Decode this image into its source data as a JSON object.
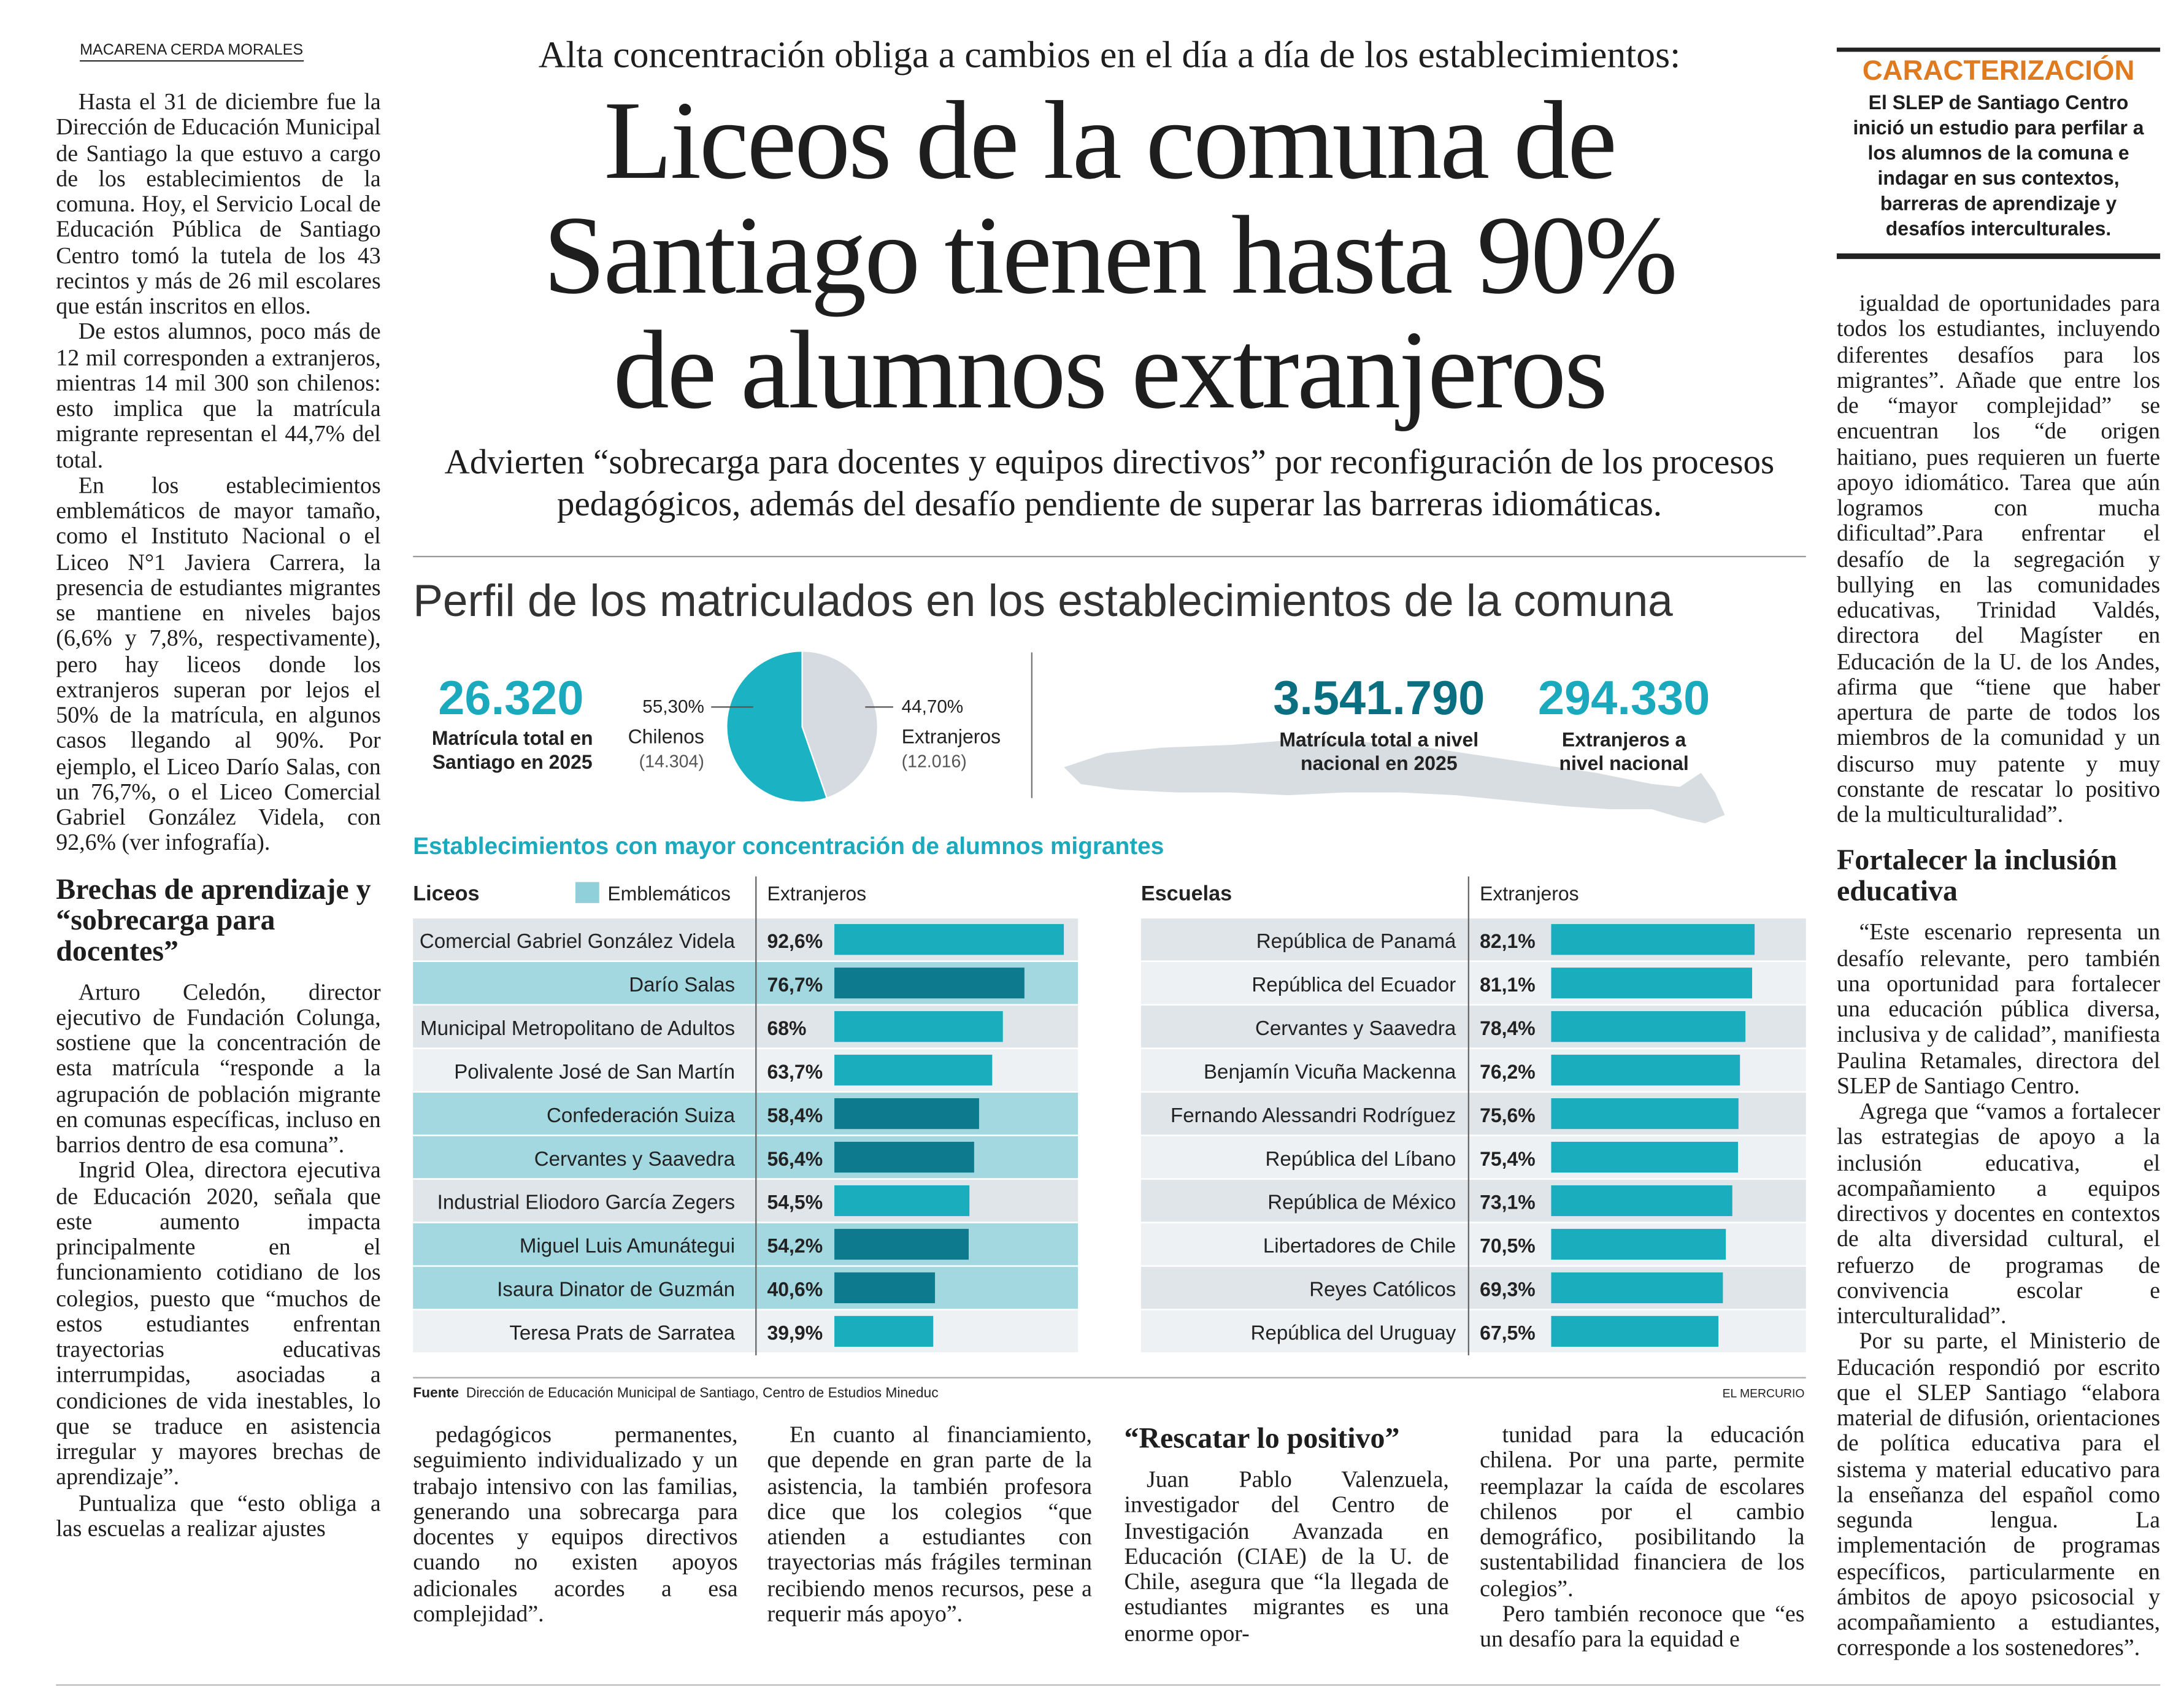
{
  "byline": "MACARENA CERDA MORALES",
  "headline": {
    "kicker": "Alta concentración obliga a cambios en el día a día de los establecimientos:",
    "title": "Liceos de la comuna de Santiago tienen hasta 90% de alumnos extranjeros",
    "deck": "Advierten “sobrecarga para docentes y equipos directivos” por reconfiguración de los procesos pedagógicos, además del desafío pendiente de superar las barreras idiomáticas."
  },
  "column_1": [
    {
      "p": "Hasta el 31 de diciembre fue la Dirección de Educación Municipal de Santiago la que estuvo a cargo de los establecimientos de la comuna. Hoy, el Servicio Local de Educación Pública de Santiago Centro tomó la tutela de los 43 recintos y más de 26 mil escolares que están inscritos en ellos."
    },
    {
      "p": "De estos alumnos, poco más de 12 mil corresponden a extranjeros, mientras 14 mil 300 son chilenos: esto implica que la matrícula migrante representan el 44,7% del total."
    },
    {
      "p": "En los establecimientos emblemáticos de mayor tamaño, como el Instituto Nacional o el Liceo N°1 Javiera Carrera, la presencia de estudiantes migrantes se mantiene en niveles bajos (6,6% y 7,8%, respectivamente), pero hay liceos donde los extranjeros superan por lejos el 50% de la matrícula, en algunos casos llegando al 90%. Por ejemplo, el Liceo Darío Salas, con un 76,7%, o el Liceo Comercial Gabriel González Videla, con 92,6% (ver infografía)."
    },
    {
      "h": "Brechas de aprendizaje y “sobrecarga para docentes”"
    },
    {
      "p": "Arturo Celedón, director ejecutivo de Fundación Colunga, sostiene que la concentración de esta matrícula “responde a la agrupación de población migrante en comunas específicas, incluso en barrios dentro de esa comuna”."
    },
    {
      "p": "Ingrid Olea, directora ejecutiva de Educación 2020, señala que este aumento impacta principalmente en el funcionamiento cotidiano de los colegios, puesto que “muchos de estos estudiantes enfrentan trayectorias educativas interrumpidas, asociadas a condiciones de vida inestables, lo que se traduce en asistencia irregular y mayores brechas de aprendizaje”."
    },
    {
      "p": "Puntualiza que “esto obliga a las escuelas a realizar ajustes"
    }
  ],
  "column_2": [
    {
      "p": "pedagógicos permanentes, seguimiento individualizado y un trabajo intensivo con las familias, generando una sobrecarga para docentes y equipos directivos cuando no existen apoyos adicionales acordes a esa complejidad”."
    }
  ],
  "column_3": [
    {
      "p": "En cuanto al financiamiento, que depende en gran parte de la asistencia, la también profesora dice que los colegios “que atienden a estudiantes con trayectorias más frágiles terminan recibiendo menos recursos, pese a requerir más apoyo”."
    }
  ],
  "column_4": [
    {
      "h": "“Rescatar lo positivo”"
    },
    {
      "p": "Juan Pablo Valenzuela, investigador del Centro de Investigación Avanzada en Educación (CIAE) de la U. de Chile, asegura que “la llegada de estudiantes migrantes es una enorme opor-"
    }
  ],
  "column_5": [
    {
      "p": "tunidad para la educación chilena. Por una parte, permite reemplazar la caída de escolares chilenos por el cambio demográfico, posibilitando la sustentabilidad financiera de los colegios”."
    },
    {
      "p": "Pero también reconoce que “es un desafío para la equidad e"
    }
  ],
  "box": {
    "title": "CARACTERIZACIÓN",
    "text": "El SLEP de Santiago Centro inició un estudio para perfilar a los alumnos de la comuna e indagar en sus contextos, barreras de aprendizaje y desafíos interculturales."
  },
  "column_6": [
    {
      "p": "igualdad de oportunidades para todos los estudiantes, incluyendo diferentes desafíos para los migrantes”. Añade que entre los de “mayor complejidad” se encuentran los “de origen haitiano, pues requieren un fuerte apoyo idiomático. Tarea que aún logramos con mucha dificultad”.Para enfrentar el desafío de la segregación y bullying en las comunidades educativas, Trinidad Valdés, directora del Magíster en Educación de la U. de los Andes, afirma que “tiene que haber apertura de parte de todos los miembros de la comunidad y un discurso muy patente y muy constante de rescatar lo positivo de la multiculturalidad”."
    },
    {
      "h": "Fortalecer la inclusión educativa"
    },
    {
      "p": "“Este escenario representa un desafío relevante, pero también una oportunidad para fortalecer una educación pública diversa, inclusiva y de calidad”, manifiesta Paulina Retamales, directora del SLEP de Santiago Centro."
    },
    {
      "p": "Agrega que “vamos a fortalecer las estrategias de apoyo a la inclusión educativa, el acompañamiento a equipos directivos y docentes en contextos de alta diversidad cultural, el refuerzo de programas de convivencia escolar e interculturalidad”."
    },
    {
      "p": "Por su parte, el Ministerio de Educación respondió por escrito que el SLEP Santiago “elabora material de difusión, orientaciones de política educativa para el sistema y material educativo para la enseñanza del español como segunda lengua. La implementación de programas específicos, particularmente en ámbitos de apoyo psicosocial y acompañamiento a estudiantes, corresponde a los sostenedores”."
    }
  ],
  "infographic": {
    "title": "Perfil de los matriculados en los establecimientos de la comuna",
    "santiago_total": {
      "number": "26.320",
      "label": "Matrícula total en Santiago en 2025"
    },
    "pie": {
      "slices": [
        {
          "name": "Chilenos",
          "value": 55.3,
          "value_label": "55,30%",
          "count": "(14.304)",
          "color": "#1bb3c3"
        },
        {
          "name": "Extranjeros",
          "value": 44.7,
          "value_label": "44,70%",
          "count": "(12.016)",
          "color": "#d5dbe0"
        }
      ]
    },
    "national_total": {
      "number": "3.541.790",
      "label": "Matrícula total a nivel nacional en 2025"
    },
    "national_foreign": {
      "number": "294.330",
      "label": "Extranjeros a nivel nacional"
    },
    "section_title": "Establecimientos con mayor concentración de alumnos migrantes",
    "liceos": {
      "header": "Liceos",
      "legend": "Emblemáticos",
      "value_header": "Extranjeros",
      "rows": [
        {
          "name": "Comercial Gabriel González Videla",
          "value": 92.6,
          "value_label": "92,6%",
          "emblematic": false
        },
        {
          "name": "Darío Salas",
          "value": 76.7,
          "value_label": "76,7%",
          "emblematic": true
        },
        {
          "name": "Municipal Metropolitano de Adultos",
          "value": 68,
          "value_label": "68%",
          "emblematic": false
        },
        {
          "name": "Polivalente José de San Martín",
          "value": 63.7,
          "value_label": "63,7%",
          "emblematic": false
        },
        {
          "name": "Confederación Suiza",
          "value": 58.4,
          "value_label": "58,4%",
          "emblematic": true
        },
        {
          "name": "Cervantes y Saavedra",
          "value": 56.4,
          "value_label": "56,4%",
          "emblematic": true
        },
        {
          "name": "Industrial Eliodoro García Zegers",
          "value": 54.5,
          "value_label": "54,5%",
          "emblematic": false
        },
        {
          "name": "Miguel Luis Amunátegui",
          "value": 54.2,
          "value_label": "54,2%",
          "emblematic": true
        },
        {
          "name": "Isaura Dinator de Guzmán",
          "value": 40.6,
          "value_label": "40,6%",
          "emblematic": true
        },
        {
          "name": "Teresa Prats de Sarratea",
          "value": 39.9,
          "value_label": "39,9%",
          "emblematic": false
        }
      ]
    },
    "escuelas": {
      "header": "Escuelas",
      "value_header": "Extranjeros",
      "rows": [
        {
          "name": "República de Panamá",
          "value": 82.1,
          "value_label": "82,1%"
        },
        {
          "name": "República del Ecuador",
          "value": 81.1,
          "value_label": "81,1%"
        },
        {
          "name": "Cervantes y Saavedra",
          "value": 78.4,
          "value_label": "78,4%"
        },
        {
          "name": "Benjamín Vicuña Mackenna",
          "value": 76.2,
          "value_label": "76,2%"
        },
        {
          "name": "Fernando Alessandri Rodríguez",
          "value": 75.6,
          "value_label": "75,6%"
        },
        {
          "name": "República del Líbano",
          "value": 75.4,
          "value_label": "75,4%"
        },
        {
          "name": "República de México",
          "value": 73.1,
          "value_label": "73,1%"
        },
        {
          "name": "Libertadores de Chile",
          "value": 70.5,
          "value_label": "70,5%"
        },
        {
          "name": "Reyes Católicos",
          "value": 69.3,
          "value_label": "69,3%"
        },
        {
          "name": "República del Uruguay",
          "value": 67.5,
          "value_label": "67,5%"
        }
      ]
    },
    "source": {
      "label": "Fuente",
      "text": "Dirección de Educación Municipal de Santiago, Centro de Estudios Mineduc"
    },
    "credit": "EL MERCURIO"
  }
}
